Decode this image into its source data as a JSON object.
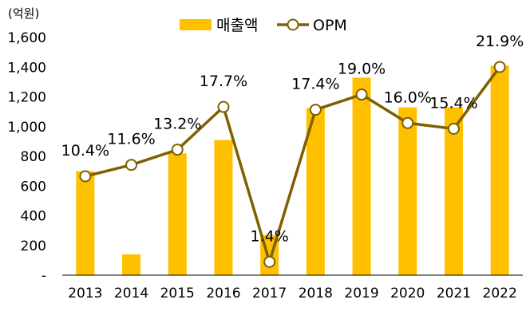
{
  "chart_data": {
    "type": "bar+line",
    "unit_label": "(억원)",
    "categories": [
      "2013",
      "2014",
      "2015",
      "2016",
      "2017",
      "2018",
      "2019",
      "2020",
      "2021",
      "2022"
    ],
    "series": [
      {
        "name": "매출액",
        "type": "bar",
        "axis": "left",
        "color": "#FFC000",
        "values": [
          700,
          140,
          820,
          910,
          270,
          1125,
          1330,
          1130,
          1130,
          1410
        ]
      },
      {
        "name": "OPM",
        "type": "line",
        "axis": "right-hidden",
        "color": "#7F6000",
        "values": [
          10.4,
          11.6,
          13.2,
          17.7,
          1.4,
          17.4,
          19.0,
          16.0,
          15.4,
          21.9
        ],
        "labels": [
          "10.4%",
          "11.6%",
          "13.2%",
          "17.7%",
          "1.4%",
          "17.4%",
          "19.0%",
          "16.0%",
          "15.4%",
          "21.9%"
        ]
      }
    ],
    "y_left": {
      "min": 0,
      "max": 1600,
      "ticks": [
        0,
        200,
        400,
        600,
        800,
        1000,
        1200,
        1400,
        1600
      ],
      "tick_labels": [
        "-",
        "200",
        "400",
        "600",
        "800",
        "1,000",
        "1,200",
        "1,400",
        "1,600"
      ]
    },
    "y_right_hidden": {
      "min": 0,
      "max": 25
    },
    "legend": {
      "position": "top-center"
    },
    "grid": false
  }
}
